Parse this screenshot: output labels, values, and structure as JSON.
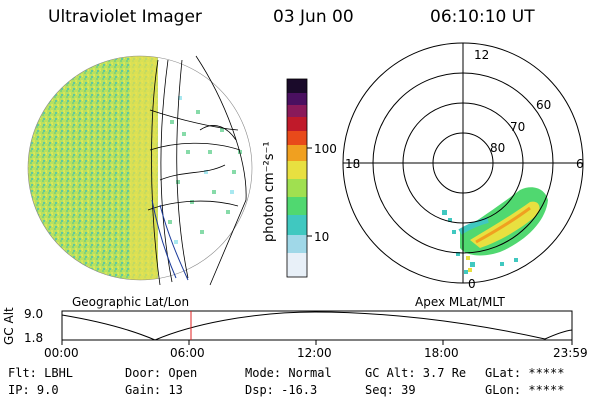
{
  "header": {
    "instrument": "Ultraviolet Imager",
    "date": "03 Jun 00",
    "time": "06:10:10 UT"
  },
  "colorbar": {
    "unit_label": "photon cm⁻²s⁻¹",
    "ticks": [
      "100",
      "10"
    ],
    "colors": [
      "#1a0a2a",
      "#4a1060",
      "#8a1a5a",
      "#c01a2a",
      "#e84a1a",
      "#f0a020",
      "#e8e040",
      "#a0e050",
      "#50d870",
      "#40c8c0",
      "#a0d8e8",
      "#e8f0f8"
    ]
  },
  "left_panel": {
    "caption": "Geographic Lat/Lon"
  },
  "right_panel": {
    "caption": "Apex MLat/MLT",
    "mlt_labels": [
      "12",
      "18",
      "6",
      "0"
    ],
    "lat_labels": [
      "60",
      "70",
      "80"
    ]
  },
  "altitude_plot": {
    "ylabel": "GC Alt",
    "y_ticks": [
      "9.0",
      "1.8"
    ],
    "x_ticks": [
      "00:00",
      "06:00",
      "12:00",
      "18:00",
      "23:59"
    ],
    "marker_time": "06:10"
  },
  "footer": {
    "flt": "Flt: LBHL",
    "ip": "IP:  9.0",
    "door": "Door: Open",
    "gain": "Gain: 13",
    "mode": "Mode: Normal",
    "dsp": "Dsp:  -16.3",
    "gcalt": "GC Alt: 3.7 Re",
    "seq": "Seq: 39",
    "glat": "GLat: *****",
    "glon": "GLon: *****"
  }
}
